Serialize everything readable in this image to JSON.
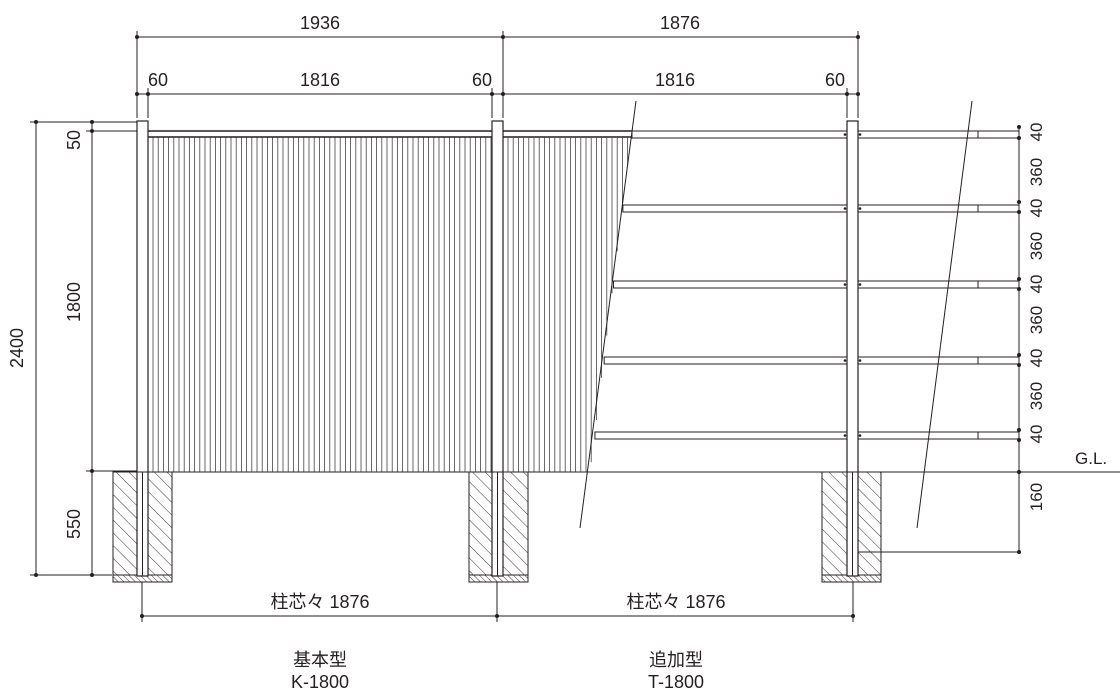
{
  "dimensions": {
    "top_total_left": "1936",
    "top_total_right": "1876",
    "post_width_1": "60",
    "panel_width_1": "1816",
    "post_width_2": "60",
    "panel_width_2": "1816",
    "post_width_3": "60",
    "total_height": "2400",
    "top_offset": "50",
    "fence_height": "1800",
    "embed_depth": "550",
    "rail_labels": [
      "40",
      "360",
      "40",
      "360",
      "40",
      "360",
      "40",
      "360",
      "40"
    ],
    "bottom_gap": "160",
    "ground_line": "G.L.",
    "post_center_left": "柱芯々 1876",
    "post_center_right": "柱芯々 1876"
  },
  "captions": {
    "basic_type_name": "基本型",
    "basic_type_code": "K-1800",
    "additional_type_name": "追加型",
    "additional_type_code": "T-1800"
  },
  "colors": {
    "line": "#231f20",
    "background": "#ffffff"
  }
}
